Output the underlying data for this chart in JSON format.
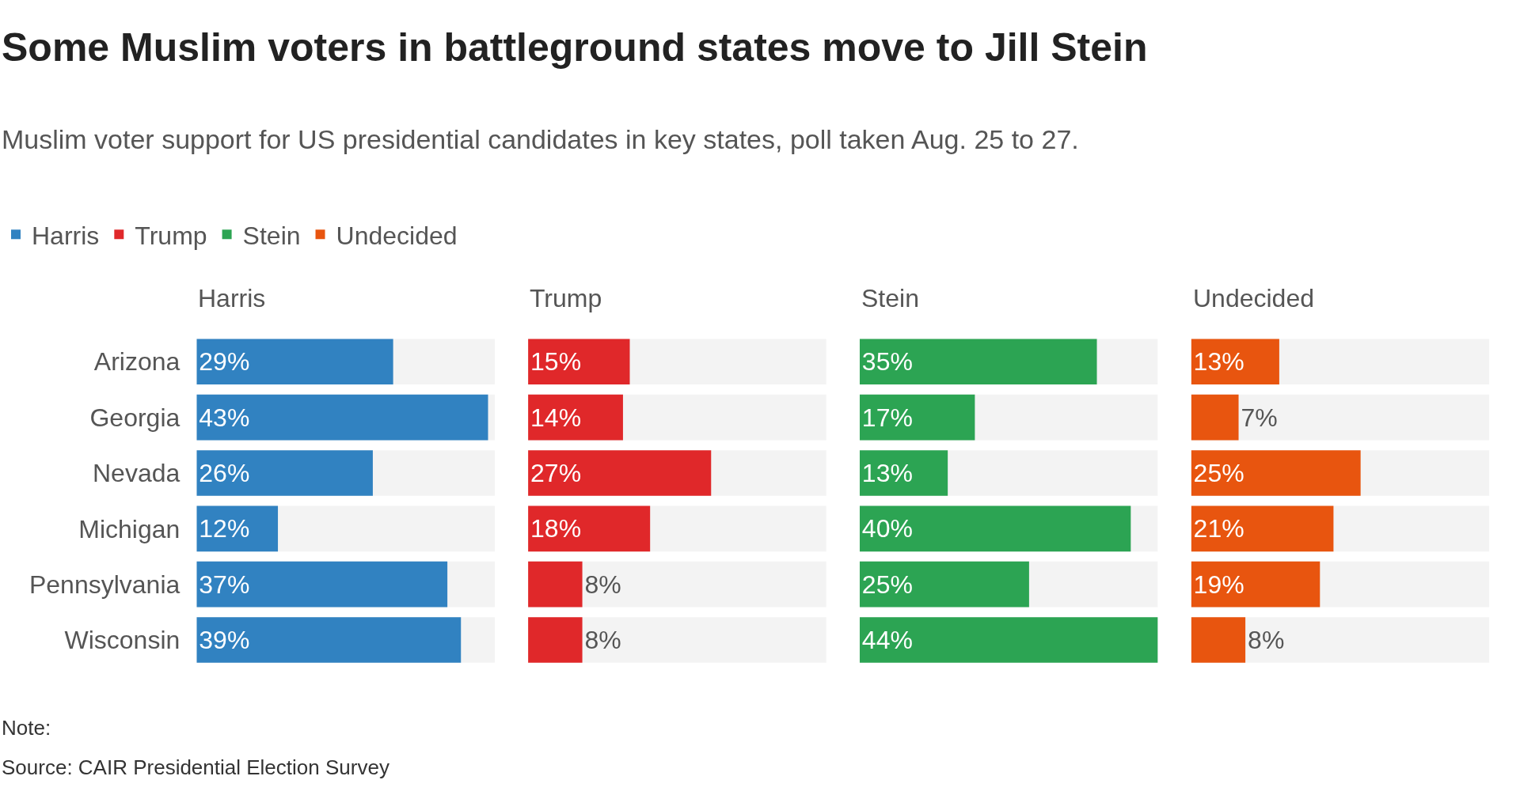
{
  "chart_data": [
    {
      "type": "other",
      "title": "Some Muslim voters in battleground states move to Jill Stein",
      "subtitle": "Muslim voter support for US presidential candidates in key states, poll taken Aug. 25 to 27.",
      "annotations": [
        "Note:",
        "Source: CAIR Presidential Election Survey"
      ]
    },
    {
      "type": "bar",
      "orientation": "horizontal",
      "title": "Harris",
      "categories": [
        "Arizona",
        "Georgia",
        "Nevada",
        "Michigan",
        "Pennsylvania",
        "Wisconsin"
      ],
      "tick_labels": "y",
      "legend": "top left",
      "series": [
        {
          "name": "Harris",
          "color": "#3182c1",
          "values": [
            29,
            43,
            26,
            12,
            37,
            39
          ],
          "value_labels": [
            "29%",
            "43%",
            "26%",
            "12%",
            "37%",
            "39%"
          ]
        }
      ]
    },
    {
      "type": "bar",
      "orientation": "horizontal",
      "title": "Trump",
      "categories": [
        null,
        null,
        null,
        null,
        null,
        null
      ],
      "legend": "top left",
      "series": [
        {
          "name": "Trump",
          "color": "#e0282a",
          "values": [
            15,
            14,
            27,
            18,
            8,
            8
          ],
          "value_labels": [
            "15%",
            "14%",
            "27%",
            "18%",
            "8%",
            "8%"
          ]
        }
      ]
    },
    {
      "type": "bar",
      "orientation": "horizontal",
      "title": "Stein",
      "categories": [
        null,
        null,
        null,
        null,
        null,
        null
      ],
      "legend": "top left",
      "series": [
        {
          "name": "Stein",
          "color": "#2ca453",
          "values": [
            35,
            17,
            13,
            40,
            25,
            44
          ],
          "value_labels": [
            "35%",
            "17%",
            "13%",
            "40%",
            "25%",
            "44%"
          ]
        }
      ]
    },
    {
      "type": "bar",
      "orientation": "horizontal",
      "title": "Undecided",
      "categories": [
        null,
        null,
        null,
        null,
        null,
        null
      ],
      "legend": "top left",
      "series": [
        {
          "name": "Undecided",
          "color": "#e8550f",
          "values": [
            13,
            7,
            25,
            21,
            19,
            8
          ],
          "value_labels": [
            "13%",
            "7%",
            "25%",
            "21%",
            "19%",
            "8%"
          ]
        }
      ]
    }
  ]
}
